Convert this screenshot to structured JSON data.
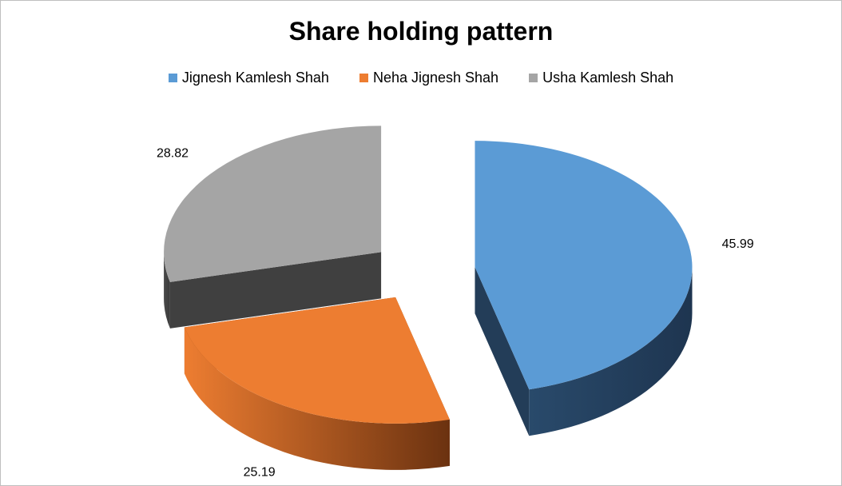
{
  "chart_data": {
    "type": "pie",
    "title": "Share holding pattern",
    "categories": [
      "Jignesh Kamlesh Shah",
      "Neha Jignesh Shah",
      "Usha Kamlesh Shah"
    ],
    "values": [
      45.99,
      25.19,
      28.82
    ],
    "value_labels": [
      "45.99",
      "25.19",
      "28.82"
    ],
    "colors": [
      "#5b9bd5",
      "#ed7d31",
      "#a5a5a5"
    ],
    "side_colors": [
      "#233d58",
      "#8a4417",
      "#404040"
    ],
    "legend_position": "top",
    "style": "3d-exploded"
  }
}
